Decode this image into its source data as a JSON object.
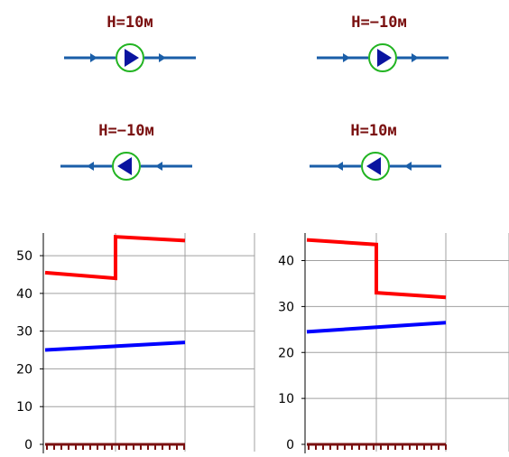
{
  "colors": {
    "head_label": "#7a1010",
    "pipe": "#1a5ea8",
    "pump_ring": "#22b422",
    "pump_triangle": "#0a14a0",
    "grid": "#a0a0a0",
    "axis": "#000000",
    "red_line": "#ff0000",
    "blue_line": "#0000ff",
    "ground": "#7a1010"
  },
  "pumps": [
    {
      "label": "H=10м",
      "direction": "right",
      "icon": "pump-right-icon"
    },
    {
      "label": "H=−10м",
      "direction": "right",
      "icon": "pump-right-icon"
    },
    {
      "label": "H=−10м",
      "direction": "left",
      "icon": "pump-left-icon"
    },
    {
      "label": "H=10м",
      "direction": "left",
      "icon": "pump-left-icon"
    }
  ],
  "chart_data": [
    {
      "type": "line",
      "ylim": [
        0,
        56
      ],
      "yticks": [
        0,
        10,
        20,
        30,
        40,
        50
      ],
      "xlim": [
        0,
        3
      ],
      "xgrid": [
        0,
        1,
        2,
        3
      ],
      "grid": true,
      "series": [
        {
          "color": "#ff0000",
          "points": [
            [
              0,
              45.5
            ],
            [
              1,
              44
            ],
            [
              1,
              55
            ],
            [
              2,
              54
            ]
          ]
        },
        {
          "color": "#0000ff",
          "points": [
            [
              0,
              25
            ],
            [
              2,
              27
            ]
          ]
        }
      ]
    },
    {
      "type": "line",
      "ylim": [
        0,
        46
      ],
      "yticks": [
        0,
        10,
        20,
        30,
        40
      ],
      "xlim": [
        0,
        3
      ],
      "xgrid": [
        0,
        1,
        2,
        3
      ],
      "grid": true,
      "series": [
        {
          "color": "#ff0000",
          "points": [
            [
              0,
              44.5
            ],
            [
              1,
              43.5
            ],
            [
              1,
              33
            ],
            [
              2,
              32
            ]
          ]
        },
        {
          "color": "#0000ff",
          "points": [
            [
              0,
              24.5
            ],
            [
              2,
              26.5
            ]
          ]
        }
      ]
    }
  ]
}
